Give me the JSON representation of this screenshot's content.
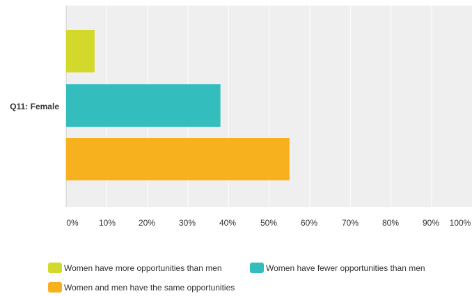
{
  "chart_data": {
    "type": "bar",
    "orientation": "horizontal",
    "categories": [
      "Q11: Female"
    ],
    "series": [
      {
        "name": "Women have more opportunities than men",
        "values": [
          7
        ],
        "color": "#d3d92a"
      },
      {
        "name": "Women have fewer opportunities than men",
        "values": [
          38
        ],
        "color": "#34bdbd"
      },
      {
        "name": "Women and men have the same opportunities",
        "values": [
          55
        ],
        "color": "#f7b11f"
      }
    ],
    "xlim": [
      0,
      100
    ],
    "xticks": [
      "0%",
      "10%",
      "20%",
      "30%",
      "40%",
      "50%",
      "60%",
      "70%",
      "80%",
      "90%",
      "100%"
    ],
    "unit": "%",
    "grid": true,
    "legend_position": "bottom",
    "colors": {
      "plot_background": "#efefef",
      "gridline": "#ffffff",
      "text": "#333333"
    }
  }
}
